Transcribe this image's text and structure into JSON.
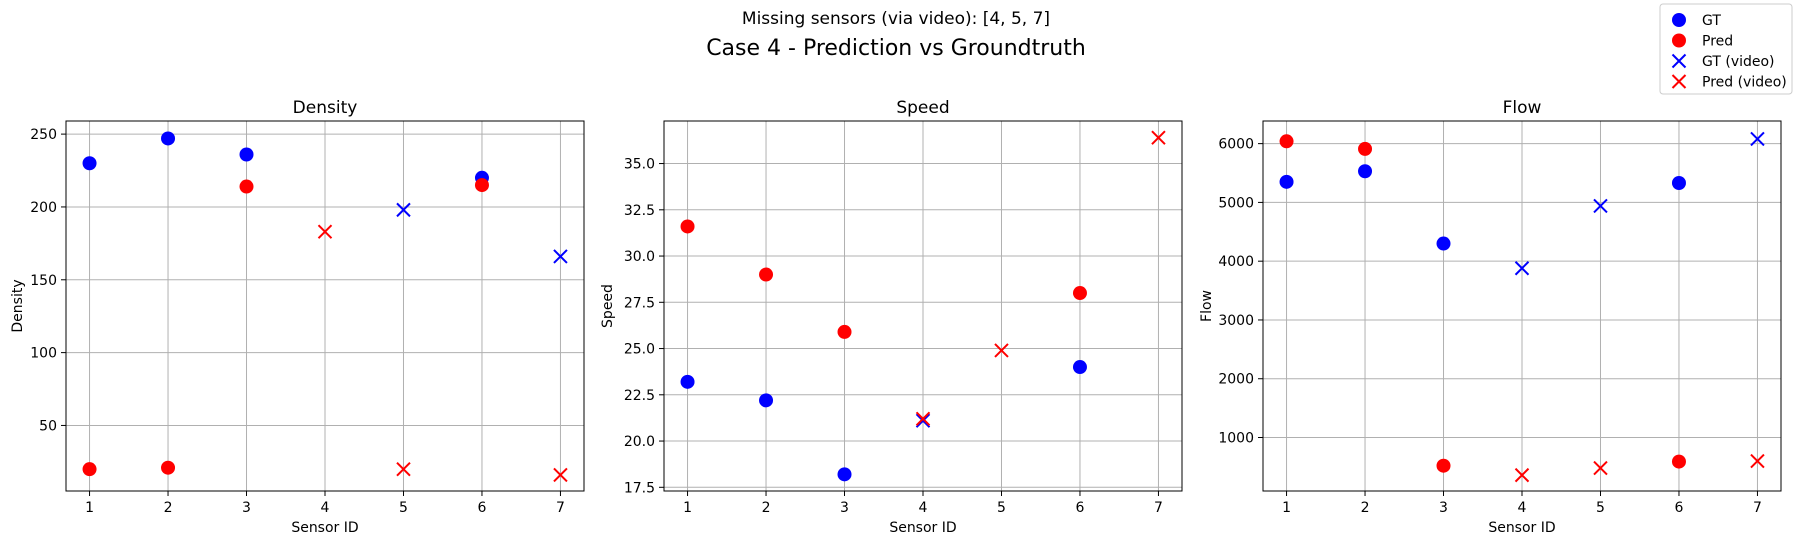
{
  "suptitle": "Missing sensors (via video): [4, 5, 7]",
  "main_title": "Case 4 - Prediction vs Groundtruth",
  "colors": {
    "gt": "#0000ff",
    "pred": "#ff0000",
    "grid": "#b0b0b0"
  },
  "legend": [
    {
      "label": "GT",
      "marker": "circle",
      "color": "#0000ff"
    },
    {
      "label": "Pred",
      "marker": "circle",
      "color": "#ff0000"
    },
    {
      "label": "GT (video)",
      "marker": "x",
      "color": "#0000ff"
    },
    {
      "label": "Pred (video)",
      "marker": "x",
      "color": "#ff0000"
    }
  ],
  "legend_position": "top-right",
  "chart_data": [
    {
      "type": "scatter",
      "title": "Density",
      "xlabel": "Sensor ID",
      "ylabel": "Density",
      "xlim": [
        0.7,
        7.3
      ],
      "ylim": [
        5,
        259
      ],
      "xticks": [
        1,
        2,
        3,
        4,
        5,
        6,
        7
      ],
      "yticks": [
        50,
        100,
        150,
        200,
        250
      ],
      "ytick_labels": [
        "50",
        "100",
        "150",
        "200",
        "250"
      ],
      "grid": true,
      "series": [
        {
          "name": "GT",
          "marker": "circle",
          "color": "#0000ff",
          "x": [
            1,
            2,
            3,
            6
          ],
          "y": [
            230,
            247,
            236,
            220
          ]
        },
        {
          "name": "Pred",
          "marker": "circle",
          "color": "#ff0000",
          "x": [
            1,
            2,
            3,
            6
          ],
          "y": [
            20,
            21,
            214,
            215
          ]
        },
        {
          "name": "GT (video)",
          "marker": "x",
          "color": "#0000ff",
          "x": [
            5,
            7
          ],
          "y": [
            198,
            166
          ]
        },
        {
          "name": "Pred (video)",
          "marker": "x",
          "color": "#ff0000",
          "x": [
            4,
            5,
            7
          ],
          "y": [
            183,
            20,
            16
          ]
        }
      ]
    },
    {
      "type": "scatter",
      "title": "Speed",
      "xlabel": "Sensor ID",
      "ylabel": "Speed",
      "xlim": [
        0.7,
        7.3
      ],
      "ylim": [
        17.3,
        37.3
      ],
      "xticks": [
        1,
        2,
        3,
        4,
        5,
        6,
        7
      ],
      "yticks": [
        17.5,
        20.0,
        22.5,
        25.0,
        27.5,
        30.0,
        32.5,
        35.0
      ],
      "ytick_labels": [
        "17.5",
        "20.0",
        "22.5",
        "25.0",
        "27.5",
        "30.0",
        "32.5",
        "35.0"
      ],
      "grid": true,
      "series": [
        {
          "name": "GT",
          "marker": "circle",
          "color": "#0000ff",
          "x": [
            1,
            2,
            3,
            6
          ],
          "y": [
            23.2,
            22.2,
            18.2,
            24.0
          ]
        },
        {
          "name": "Pred",
          "marker": "circle",
          "color": "#ff0000",
          "x": [
            1,
            2,
            3,
            6
          ],
          "y": [
            31.6,
            29.0,
            25.9,
            28.0
          ]
        },
        {
          "name": "GT (video)",
          "marker": "x",
          "color": "#0000ff",
          "x": [
            4
          ],
          "y": [
            21.1
          ]
        },
        {
          "name": "Pred (video)",
          "marker": "x",
          "color": "#ff0000",
          "x": [
            4,
            5,
            7
          ],
          "y": [
            21.2,
            24.9,
            36.4
          ]
        }
      ]
    },
    {
      "type": "scatter",
      "title": "Flow",
      "xlabel": "Sensor ID",
      "ylabel": "Flow",
      "xlim": [
        0.7,
        7.3
      ],
      "ylim": [
        90,
        6385
      ],
      "xticks": [
        1,
        2,
        3,
        4,
        5,
        6,
        7
      ],
      "yticks": [
        1000,
        2000,
        3000,
        4000,
        5000,
        6000
      ],
      "ytick_labels": [
        "1000",
        "2000",
        "3000",
        "4000",
        "5000",
        "6000"
      ],
      "grid": true,
      "series": [
        {
          "name": "GT",
          "marker": "circle",
          "color": "#0000ff",
          "x": [
            1,
            2,
            3,
            6
          ],
          "y": [
            5350,
            5530,
            4300,
            5330
          ]
        },
        {
          "name": "Pred",
          "marker": "circle",
          "color": "#ff0000",
          "x": [
            1,
            2,
            3,
            6
          ],
          "y": [
            6040,
            5910,
            520,
            590
          ]
        },
        {
          "name": "GT (video)",
          "marker": "x",
          "color": "#0000ff",
          "x": [
            4,
            5,
            7
          ],
          "y": [
            3880,
            4940,
            6080
          ]
        },
        {
          "name": "Pred (video)",
          "marker": "x",
          "color": "#ff0000",
          "x": [
            4,
            5,
            7
          ],
          "y": [
            360,
            480,
            600
          ]
        }
      ]
    }
  ]
}
